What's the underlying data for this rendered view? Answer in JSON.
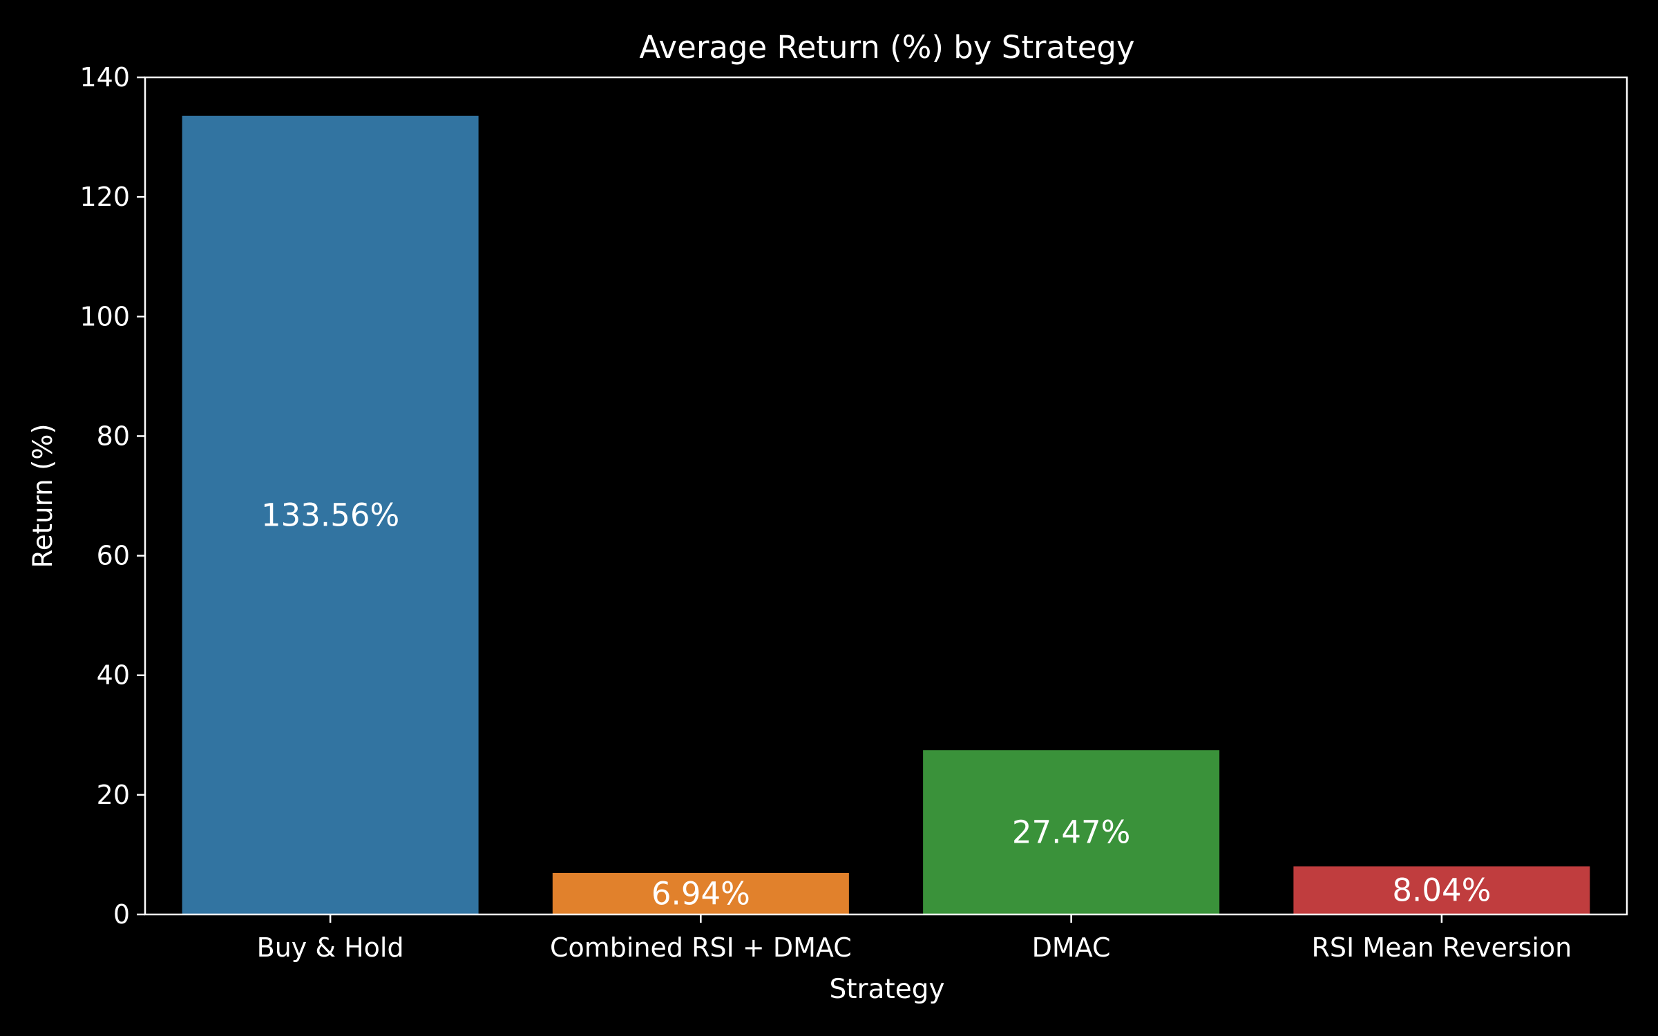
{
  "chart_data": {
    "type": "bar",
    "title": "Average Return (%) by Strategy",
    "xlabel": "Strategy",
    "ylabel": "Return (%)",
    "categories": [
      "Buy & Hold",
      "Combined RSI + DMAC",
      "DMAC",
      "RSI Mean Reversion"
    ],
    "values": [
      133.56,
      6.94,
      27.47,
      8.04
    ],
    "data_labels": [
      "133.56%",
      "6.94%",
      "27.47%",
      "8.04%"
    ],
    "ylim": [
      0,
      140
    ],
    "yticks": [
      0,
      20,
      40,
      60,
      80,
      100,
      120,
      140
    ],
    "grid": false,
    "legend": "none",
    "colors": [
      "#3274a1",
      "#e1812c",
      "#3a923a",
      "#c03d3e"
    ],
    "background": "#000000",
    "foreground": "#ffffff"
  }
}
